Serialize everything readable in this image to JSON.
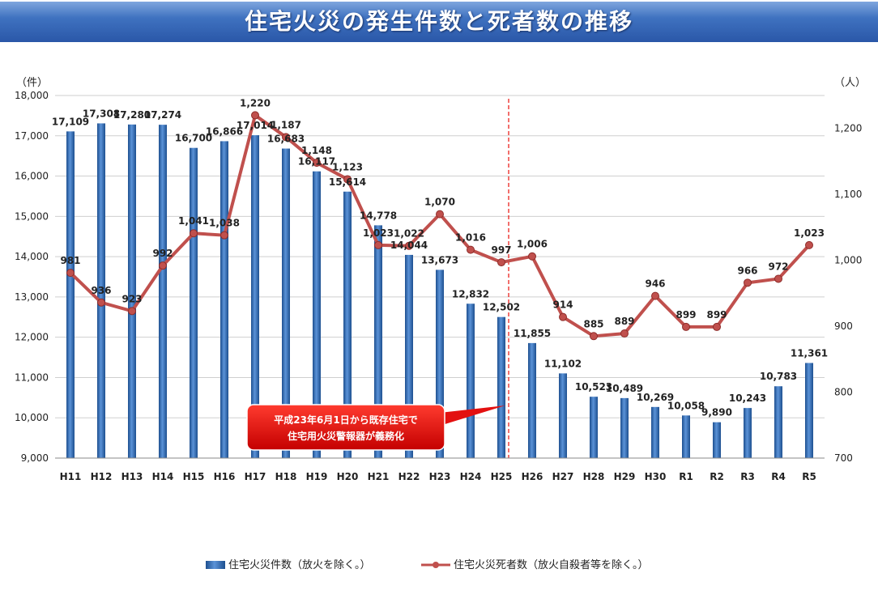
{
  "title": "住宅火災の発生件数と死者数の推移",
  "chart_data": {
    "type": "bar",
    "categories": [
      "H11",
      "H12",
      "H13",
      "H14",
      "H15",
      "H16",
      "H17",
      "H18",
      "H19",
      "H20",
      "H21",
      "H22",
      "H23",
      "H24",
      "H25",
      "H26",
      "H27",
      "H28",
      "H29",
      "H30",
      "R1",
      "R2",
      "R3",
      "R4",
      "R5"
    ],
    "series": [
      {
        "name": "住宅火災件数（放火を除く。）",
        "type": "bar",
        "axis": "left",
        "color": "#2e6bb5",
        "values": [
          17109,
          17308,
          17280,
          17274,
          16700,
          16866,
          17014,
          16683,
          16117,
          15614,
          14778,
          14044,
          13673,
          12832,
          12502,
          11855,
          11102,
          10523,
          10489,
          10269,
          10058,
          9890,
          10243,
          10783,
          11361
        ],
        "labels": [
          "17,109",
          "17,308",
          "17,280",
          "17,274",
          "16,700",
          "16,866",
          "17,014",
          "16,683",
          "16,117",
          "15,614",
          "14,778",
          "14,044",
          "13,673",
          "12,832",
          "12,502",
          "11,855",
          "11,102",
          "10,523",
          "10,489",
          "10,269",
          "10,058",
          "9,890",
          "10,243",
          "10,783",
          "11,361"
        ]
      },
      {
        "name": "住宅火災死者数（放火自殺者等を除く。）",
        "type": "line",
        "axis": "right",
        "color": "#c0504d",
        "values": [
          981,
          936,
          923,
          992,
          1041,
          1038,
          1220,
          1187,
          1148,
          1123,
          1023,
          1022,
          1070,
          1016,
          997,
          1006,
          914,
          885,
          889,
          946,
          899,
          899,
          966,
          972,
          1023
        ],
        "labels": [
          "981",
          "936",
          "923",
          "992",
          "1,041",
          "1,038",
          "1,220",
          "1,187",
          "1,148",
          "1,123",
          "1,023",
          "1,022",
          "1,070",
          "1,016",
          "997",
          "1,006",
          "914",
          "885",
          "889",
          "946",
          "899",
          "899",
          "966",
          "972",
          "1,023"
        ]
      }
    ],
    "left_axis": {
      "unit": "（件）",
      "ylim": [
        9000,
        18000
      ],
      "ticks": [
        9000,
        10000,
        11000,
        12000,
        13000,
        14000,
        15000,
        16000,
        17000,
        18000
      ],
      "tick_labels": [
        "9,000",
        "10,000",
        "11,000",
        "12,000",
        "13,000",
        "14,000",
        "15,000",
        "16,000",
        "17,000",
        "18,000"
      ]
    },
    "right_axis": {
      "unit": "（人）",
      "ylim": [
        700,
        1250
      ],
      "ticks": [
        700,
        800,
        900,
        1000,
        1100,
        1200
      ],
      "tick_labels": [
        "700",
        "800",
        "900",
        "1,000",
        "1,100",
        "1,200"
      ]
    },
    "grid": true,
    "legend_position": "bottom-center",
    "annotation": {
      "line1": "平成23年6月1日から既存住宅で",
      "line2": "住宅用火災警報器が義務化",
      "marker_category": "H25",
      "color": "#e8100c"
    }
  }
}
